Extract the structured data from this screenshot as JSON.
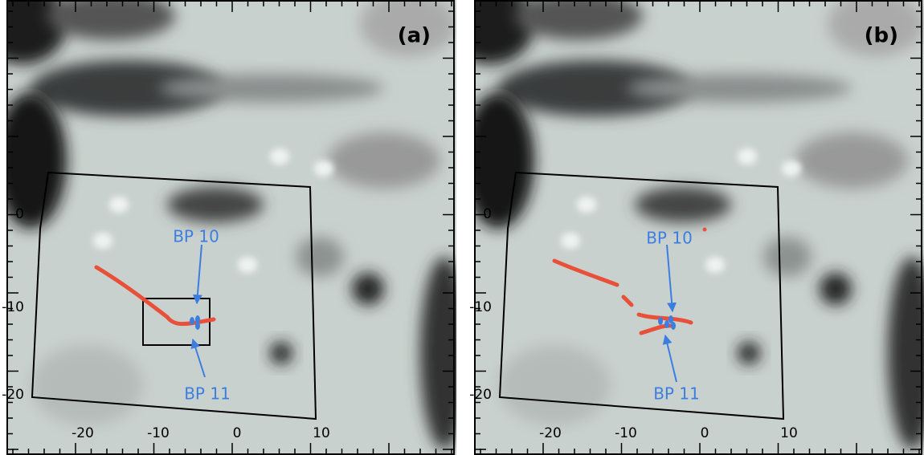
{
  "panels": [
    {
      "label": "(a)",
      "xticks": [
        "-20",
        "-10",
        "0",
        "10"
      ],
      "yticks": [
        "0",
        "-10",
        "-20"
      ],
      "annotations": [
        "BP 10",
        "BP 11"
      ]
    },
    {
      "label": "(b)",
      "xticks": [
        "-20",
        "-10",
        "0",
        "10"
      ],
      "yticks": [
        "0",
        "-10",
        "-20"
      ],
      "annotations": [
        "BP 10",
        "BP 11"
      ]
    }
  ]
}
